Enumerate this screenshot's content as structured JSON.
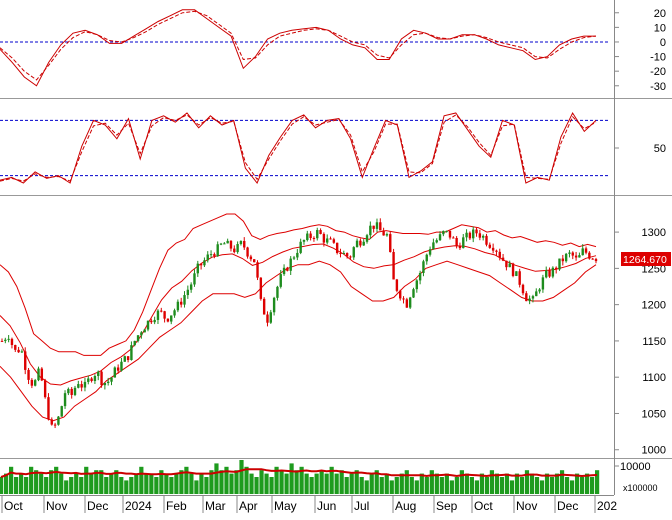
{
  "colors": {
    "up": "#1e8c1e",
    "down": "#dd0000",
    "band": "#dd0000",
    "indicator": "#cc0000",
    "reference": "#0000cc",
    "volume": "#1e9b1e",
    "volume_ma": "#cc0000",
    "frame": "#888888",
    "price_tag_bg": "#dd0000",
    "price_tag_text": "#ffffff"
  },
  "chart_data": [
    {
      "id": "oscillator",
      "type": "line",
      "ylim": [
        -37,
        26
      ],
      "y_ticks": [
        "20",
        "10",
        "0",
        "-10",
        "-20",
        "-30"
      ],
      "reference_lines": [
        0
      ],
      "series": [
        {
          "values": [
            -5,
            -14,
            -24,
            -30,
            -14,
            -2,
            6,
            8,
            5,
            -1,
            -1,
            4,
            9,
            14,
            18,
            22,
            22,
            16,
            10,
            4,
            -18,
            -10,
            2,
            6,
            8,
            9,
            10,
            8,
            2,
            -2,
            -4,
            -12,
            -12,
            2,
            8,
            6,
            2,
            2,
            5,
            5,
            2,
            -2,
            -4,
            -6,
            -12,
            -10,
            -2,
            2,
            4,
            4
          ]
        },
        {
          "dashed": true,
          "values": [
            -4,
            -11,
            -20,
            -26,
            -16,
            -5,
            3,
            7,
            5,
            1,
            0,
            3,
            7,
            12,
            16,
            20,
            21,
            18,
            12,
            6,
            -12,
            -11,
            -2,
            4,
            6,
            8,
            9,
            8,
            4,
            0,
            -2,
            -9,
            -11,
            -2,
            5,
            6,
            3,
            2,
            4,
            5,
            3,
            0,
            -2,
            -4,
            -10,
            -11,
            -5,
            0,
            3,
            4
          ]
        }
      ]
    },
    {
      "id": "stochastic",
      "type": "line",
      "ylim": [
        0,
        100
      ],
      "y_ticks": [
        "50"
      ],
      "reference_lines": [
        80,
        20
      ],
      "series": [
        {
          "values": [
            15,
            18,
            12,
            24,
            17,
            20,
            12,
            52,
            80,
            75,
            60,
            82,
            38,
            80,
            85,
            78,
            88,
            72,
            85,
            75,
            80,
            28,
            12,
            42,
            62,
            80,
            86,
            72,
            80,
            82,
            60,
            18,
            50,
            80,
            75,
            18,
            25,
            35,
            85,
            88,
            70,
            52,
            40,
            80,
            75,
            12,
            18,
            15,
            62,
            88,
            68,
            80
          ]
        },
        {
          "dashed": true,
          "values": [
            14,
            17,
            14,
            22,
            18,
            19,
            14,
            46,
            74,
            77,
            64,
            77,
            44,
            74,
            83,
            80,
            86,
            75,
            83,
            77,
            79,
            34,
            16,
            38,
            58,
            76,
            84,
            75,
            78,
            81,
            64,
            24,
            46,
            76,
            76,
            24,
            23,
            33,
            78,
            86,
            73,
            56,
            42,
            74,
            76,
            18,
            17,
            16,
            55,
            84,
            71,
            78
          ]
        }
      ]
    },
    {
      "id": "price",
      "type": "candlestick",
      "ylim": [
        990,
        1347
      ],
      "y_ticks": [
        "1300",
        "1250",
        "1200",
        "1150",
        "1100",
        "1050",
        "1000"
      ],
      "price_label": "1264.670",
      "close_values": [
        1150,
        1160,
        1135,
        1140,
        1105,
        1088,
        1110,
        1060,
        1025,
        1045,
        1080,
        1075,
        1095,
        1085,
        1100,
        1108,
        1092,
        1095,
        1110,
        1120,
        1130,
        1150,
        1165,
        1175,
        1185,
        1190,
        1180,
        1190,
        1200,
        1215,
        1230,
        1250,
        1260,
        1270,
        1275,
        1285,
        1280,
        1275,
        1285,
        1270,
        1260,
        1200,
        1180,
        1210,
        1235,
        1250,
        1265,
        1280,
        1290,
        1295,
        1300,
        1290,
        1285,
        1275,
        1270,
        1265,
        1285,
        1290,
        1305,
        1310,
        1300,
        1295,
        1230,
        1215,
        1200,
        1225,
        1240,
        1265,
        1285,
        1290,
        1300,
        1295,
        1280,
        1290,
        1295,
        1300,
        1295,
        1285,
        1280,
        1265,
        1255,
        1245,
        1230,
        1210,
        1205,
        1225,
        1240,
        1245,
        1255,
        1265,
        1270,
        1260,
        1275,
        1268,
        1264.67
      ],
      "upper_band": [
        1255,
        1245,
        1225,
        1195,
        1160,
        1150,
        1140,
        1135,
        1135,
        1135,
        1130,
        1130,
        1130,
        1140,
        1145,
        1150,
        1165,
        1190,
        1220,
        1250,
        1275,
        1285,
        1290,
        1305,
        1310,
        1315,
        1320,
        1325,
        1325,
        1315,
        1295,
        1290,
        1295,
        1298,
        1300,
        1303,
        1305,
        1308,
        1310,
        1308,
        1302,
        1300,
        1295,
        1292,
        1290,
        1300,
        1302,
        1300,
        1298,
        1298,
        1298,
        1297,
        1300,
        1300,
        1305,
        1310,
        1308,
        1306,
        1300,
        1302,
        1296,
        1292,
        1294,
        1290,
        1286,
        1288,
        1286,
        1282,
        1285,
        1280,
        1283,
        1280
      ],
      "lower_band": [
        1115,
        1100,
        1080,
        1060,
        1045,
        1040,
        1045,
        1060,
        1070,
        1080,
        1095,
        1105,
        1115,
        1125,
        1140,
        1155,
        1165,
        1175,
        1190,
        1205,
        1215,
        1215,
        1215,
        1210,
        1215,
        1230,
        1240,
        1250,
        1255,
        1255,
        1260,
        1255,
        1245,
        1225,
        1215,
        1205,
        1205,
        1210,
        1225,
        1235,
        1250,
        1255,
        1260,
        1255,
        1250,
        1245,
        1240,
        1230,
        1220,
        1210,
        1205,
        1205,
        1210,
        1220,
        1230,
        1245,
        1255
      ]
    },
    {
      "id": "volume",
      "type": "bar",
      "y_ticks": [
        "10000"
      ],
      "unit_label": "x100000",
      "values": [
        5,
        6,
        8,
        5,
        6,
        5,
        8,
        7,
        6,
        5,
        7,
        8,
        6,
        4,
        5,
        6,
        5,
        8,
        6,
        7,
        7,
        5,
        6,
        7,
        5,
        4,
        5,
        6,
        8,
        6,
        6,
        5,
        7,
        6,
        5,
        6,
        7,
        8,
        6,
        4,
        6,
        5,
        7,
        9,
        7,
        8,
        6,
        7,
        10,
        8,
        6,
        5,
        7,
        6,
        5,
        8,
        7,
        6,
        9,
        7,
        8,
        6,
        5,
        6,
        7,
        6,
        8,
        6,
        7,
        5,
        6,
        7,
        5,
        4,
        6,
        7,
        5,
        6,
        4,
        5,
        6,
        7,
        5,
        4,
        6,
        5,
        7,
        6,
        5,
        6,
        4,
        5,
        7,
        6,
        5,
        4,
        6,
        5,
        7,
        6,
        5,
        6,
        4,
        6,
        5,
        7,
        6,
        5,
        4,
        6,
        5,
        6,
        7,
        5,
        4,
        6,
        5,
        6,
        5,
        7
      ]
    }
  ],
  "x_axis": {
    "labels": [
      "Oct",
      "Nov",
      "Dec",
      "2024",
      "Feb",
      "Mar",
      "Apr",
      "May",
      "Jun",
      "Jul",
      "Aug",
      "Sep",
      "Oct",
      "Nov",
      "Dec",
      "202"
    ]
  }
}
